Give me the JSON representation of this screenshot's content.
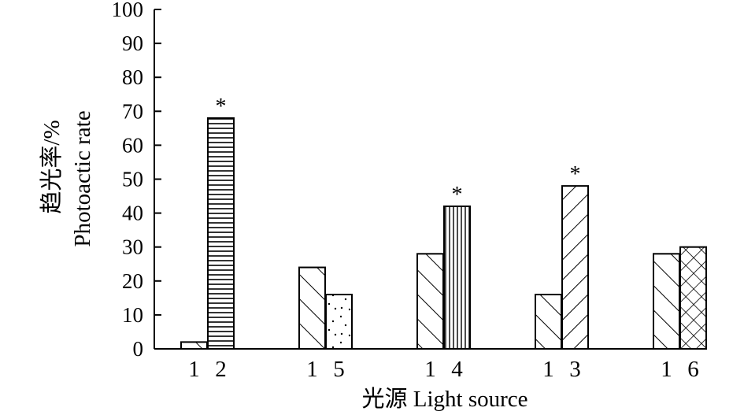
{
  "chart_data": {
    "type": "bar",
    "title": "",
    "ylabel_cn": "趋光率/%",
    "ylabel_en": "Photoactic rate",
    "xlabel": "光源 Light source",
    "ylim": [
      0,
      100
    ],
    "yticks": [
      "0",
      "10",
      "20",
      "30",
      "40",
      "50",
      "60",
      "70",
      "80",
      "90",
      "100"
    ],
    "grid": false,
    "groups": [
      {
        "bars": [
          {
            "label": "1",
            "value": 2,
            "pattern": "diag",
            "star": ""
          },
          {
            "label": "2",
            "value": 68,
            "pattern": "hlines",
            "star": "*"
          }
        ]
      },
      {
        "bars": [
          {
            "label": "1",
            "value": 24,
            "pattern": "diag",
            "star": ""
          },
          {
            "label": "5",
            "value": 16,
            "pattern": "dots",
            "star": ""
          }
        ]
      },
      {
        "bars": [
          {
            "label": "1",
            "value": 28,
            "pattern": "diag",
            "star": ""
          },
          {
            "label": "4",
            "value": 42,
            "pattern": "vlines",
            "star": "*"
          }
        ]
      },
      {
        "bars": [
          {
            "label": "1",
            "value": 16,
            "pattern": "diag",
            "star": ""
          },
          {
            "label": "3",
            "value": 48,
            "pattern": "backdiag",
            "star": "*"
          }
        ]
      },
      {
        "bars": [
          {
            "label": "1",
            "value": 28,
            "pattern": "diag",
            "star": ""
          },
          {
            "label": "6",
            "value": 30,
            "pattern": "cross",
            "star": ""
          }
        ]
      }
    ]
  }
}
